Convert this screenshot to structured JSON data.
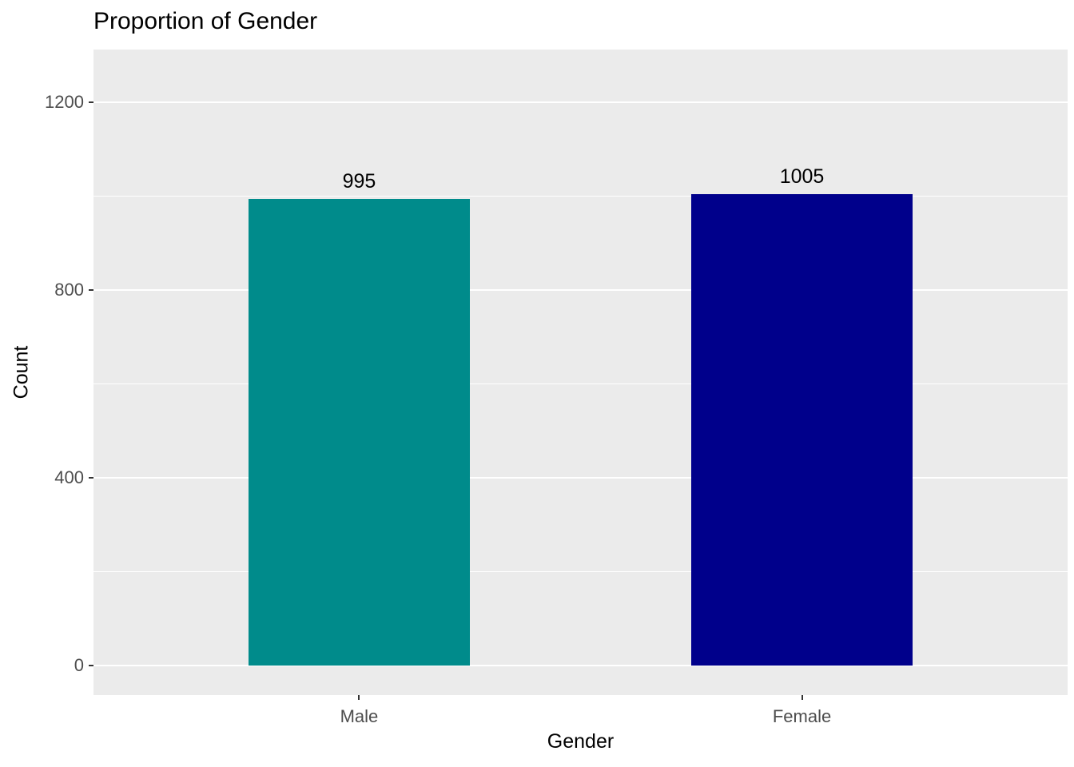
{
  "chart_data": {
    "type": "bar",
    "title": "Proportion of Gender",
    "xlabel": "Gender",
    "ylabel": "Count",
    "categories": [
      "Male",
      "Female"
    ],
    "values": [
      995,
      1005
    ],
    "value_labels": [
      "995",
      "1005"
    ],
    "series_colors": [
      "#008B8B",
      "#00008B"
    ],
    "yticks": [
      0,
      400,
      800,
      1200
    ],
    "ytick_labels": [
      "0",
      "400",
      "800",
      "1200"
    ],
    "y_minor_ticks": [
      200,
      600,
      1000
    ],
    "ylim": [
      0,
      1250
    ],
    "grid": "on",
    "legend_position": "none",
    "panel_background": "#EBEBEB",
    "gridline_color": "#FFFFFF",
    "tick_label_color": "#4D4D4D"
  }
}
